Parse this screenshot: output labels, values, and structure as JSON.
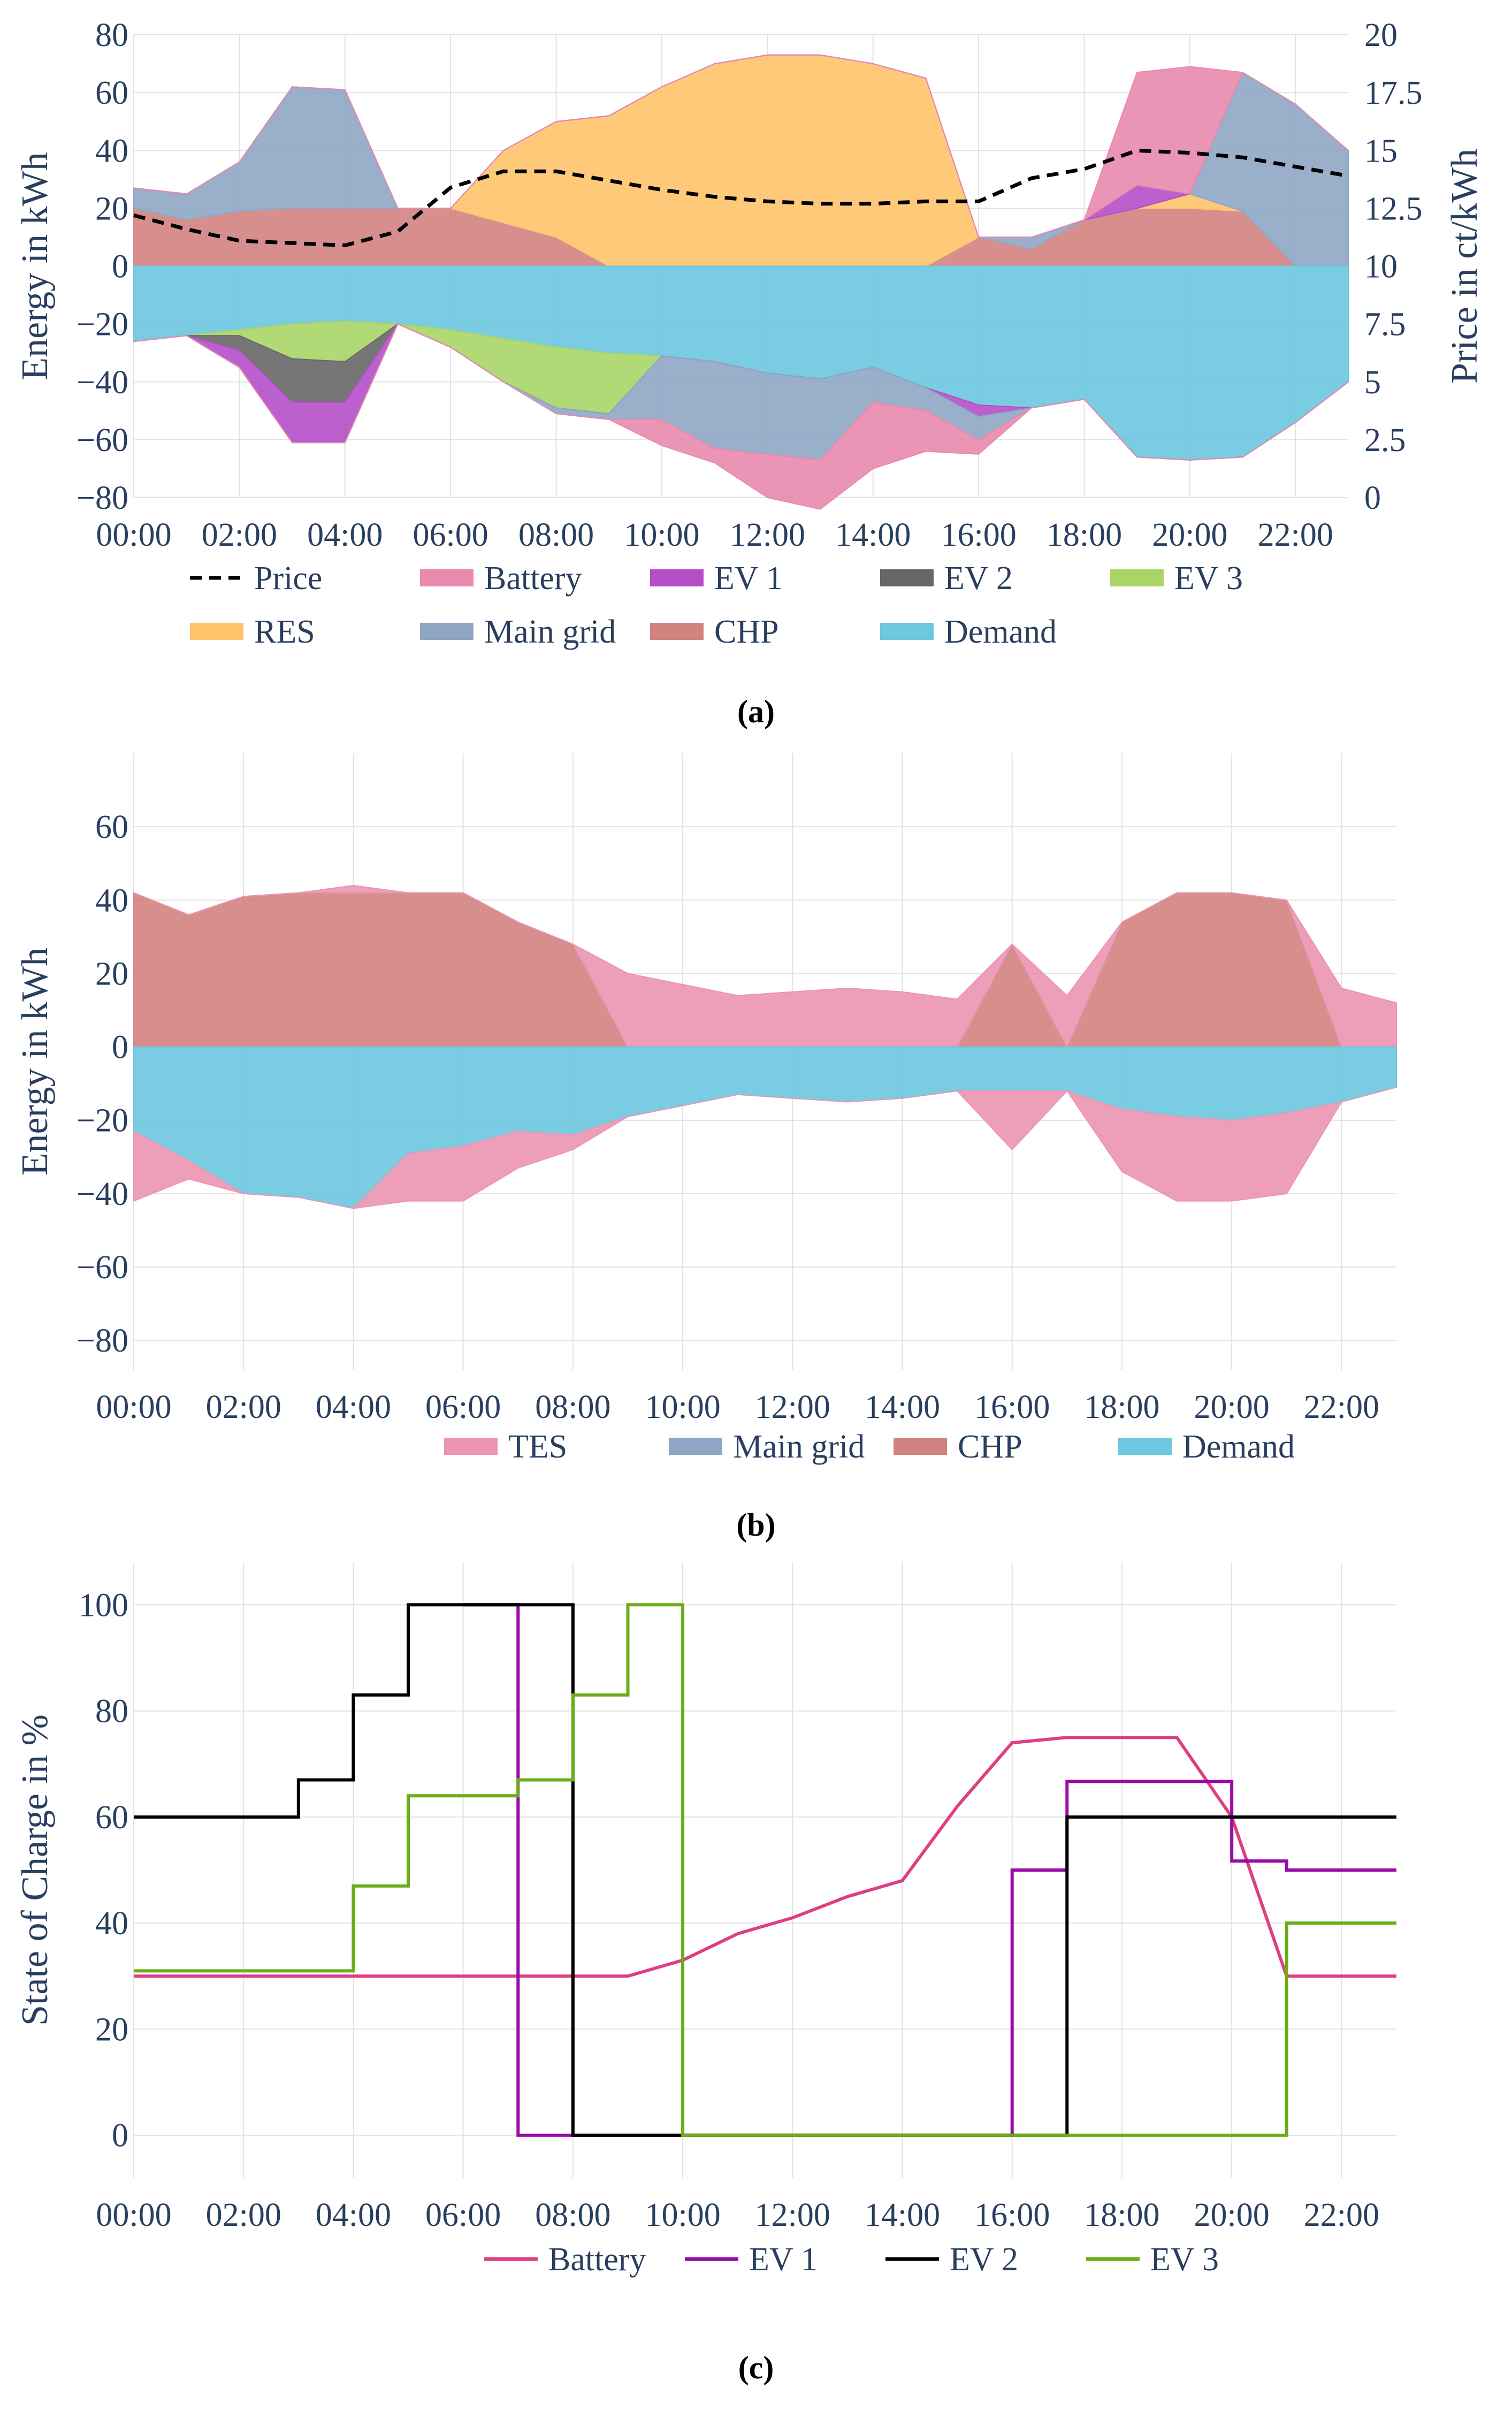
{
  "colors": {
    "price": "#000000",
    "battery": "#e889ad",
    "ev1": "#b54fc8",
    "ev2": "#676767",
    "ev3": "#a9d566",
    "res": "#ffc36b",
    "main_grid": "#8ea6c4",
    "chp": "#d2837f",
    "demand": "#6cc7df",
    "tes": "#eb95b3",
    "line_battery": "#de3f83",
    "line_ev1": "#9a0aa6",
    "line_ev2": "#000000",
    "line_ev3": "#6aad16",
    "grid": "#e2e2e2",
    "text": "#2a3f5f"
  },
  "chart_data": [
    {
      "type": "area",
      "caption": "(a)",
      "x": [
        "00:00",
        "01:00",
        "02:00",
        "03:00",
        "04:00",
        "05:00",
        "06:00",
        "07:00",
        "08:00",
        "09:00",
        "10:00",
        "11:00",
        "12:00",
        "13:00",
        "14:00",
        "15:00",
        "16:00",
        "17:00",
        "18:00",
        "19:00",
        "20:00",
        "21:00",
        "22:00",
        "23:00"
      ],
      "xticks": [
        "00:00",
        "02:00",
        "04:00",
        "06:00",
        "08:00",
        "10:00",
        "12:00",
        "14:00",
        "16:00",
        "18:00",
        "20:00",
        "22:00"
      ],
      "ylabel": "Energy in kWh",
      "ylim": [
        -80,
        80
      ],
      "yticks": [
        "−80",
        "−60",
        "−40",
        "−20",
        "0",
        "20",
        "40",
        "60",
        "80"
      ],
      "y2label": "Price in ct/kWh",
      "y2lim": [
        0,
        20
      ],
      "y2ticks": [
        "0",
        "2.5",
        "5",
        "7.5",
        "10",
        "12.5",
        "15",
        "17.5",
        "20"
      ],
      "legend": [
        "Price",
        "Battery",
        "EV 1",
        "EV 2",
        "EV 3",
        "RES",
        "Main grid",
        "CHP",
        "Demand"
      ],
      "positive_stack": [
        {
          "name": "CHP",
          "values": [
            20,
            16,
            19,
            20,
            20,
            20,
            20,
            15,
            10,
            0,
            0,
            0,
            0,
            0,
            0,
            0,
            10,
            6,
            16,
            20,
            20,
            19,
            0,
            0
          ]
        },
        {
          "name": "RES",
          "values": [
            0,
            0,
            0,
            0,
            0,
            0,
            0,
            25,
            40,
            52,
            62,
            70,
            73,
            73,
            70,
            65,
            0,
            0,
            0,
            0,
            5,
            0,
            0,
            0
          ]
        },
        {
          "name": "Main grid",
          "values": [
            7,
            9,
            17,
            42,
            41,
            0,
            0,
            0,
            0,
            0,
            0,
            0,
            0,
            0,
            0,
            0,
            0,
            4,
            0,
            0,
            0,
            48,
            56,
            40
          ]
        },
        {
          "name": "EV 1",
          "values": [
            0,
            0,
            0,
            0,
            0,
            0,
            0,
            0,
            0,
            0,
            0,
            0,
            0,
            0,
            0,
            0,
            0,
            0,
            0,
            8,
            0,
            0,
            0,
            0
          ]
        },
        {
          "name": "Battery",
          "values": [
            0,
            0,
            0,
            0,
            0,
            0,
            0,
            0,
            0,
            0,
            0,
            0,
            0,
            0,
            0,
            0,
            0,
            0,
            0,
            39,
            44,
            0,
            0,
            0
          ]
        }
      ],
      "negative_stack": [
        {
          "name": "Demand",
          "values": [
            -26,
            -24,
            -22,
            -20,
            -19,
            -20,
            -22,
            -25,
            -28,
            -30,
            -31,
            -33,
            -37,
            -39,
            -35,
            -42,
            -48,
            -49,
            -46,
            -66,
            -67,
            -66,
            -54,
            -40
          ]
        },
        {
          "name": "EV 3",
          "values": [
            0,
            0,
            -2,
            -12,
            -14,
            0,
            -6,
            -15,
            -21,
            -21,
            0,
            0,
            0,
            0,
            0,
            0,
            0,
            0,
            0,
            0,
            0,
            0,
            0,
            0
          ]
        },
        {
          "name": "EV 2",
          "values": [
            0,
            0,
            -5,
            -15,
            -14,
            0,
            0,
            0,
            0,
            0,
            0,
            0,
            0,
            0,
            0,
            0,
            0,
            0,
            0,
            0,
            0,
            0,
            0,
            0
          ]
        },
        {
          "name": "EV 1",
          "values": [
            0,
            0,
            -6,
            -14,
            -14,
            0,
            0,
            0,
            0,
            0,
            0,
            0,
            0,
            0,
            0,
            0,
            -4,
            0,
            0,
            0,
            0,
            0,
            0,
            0
          ]
        },
        {
          "name": "Main grid",
          "values": [
            0,
            0,
            0,
            0,
            0,
            0,
            0,
            0,
            -2,
            -2,
            -22,
            -30,
            -28,
            -28,
            -12,
            -8,
            -8,
            0,
            0,
            0,
            0,
            0,
            0,
            0
          ]
        },
        {
          "name": "Battery",
          "values": [
            0,
            0,
            0,
            0,
            0,
            0,
            0,
            0,
            0,
            0,
            -9,
            -5,
            -15,
            -17,
            -23,
            -14,
            -5,
            0,
            0,
            0,
            0,
            0,
            0,
            0
          ]
        }
      ],
      "price": [
        12.2,
        11.6,
        11.1,
        11.0,
        10.9,
        11.5,
        13.4,
        14.1,
        14.1,
        13.7,
        13.3,
        13.0,
        12.8,
        12.7,
        12.7,
        12.8,
        12.8,
        13.8,
        14.2,
        15.0,
        14.9,
        14.7,
        14.3,
        13.9
      ]
    },
    {
      "type": "area",
      "caption": "(b)",
      "x": [
        "00:00",
        "01:00",
        "02:00",
        "03:00",
        "04:00",
        "05:00",
        "06:00",
        "07:00",
        "08:00",
        "09:00",
        "10:00",
        "11:00",
        "12:00",
        "13:00",
        "14:00",
        "15:00",
        "16:00",
        "17:00",
        "18:00",
        "19:00",
        "20:00",
        "21:00",
        "22:00",
        "23:00"
      ],
      "xticks": [
        "00:00",
        "02:00",
        "04:00",
        "06:00",
        "08:00",
        "10:00",
        "12:00",
        "14:00",
        "16:00",
        "18:00",
        "20:00",
        "22:00"
      ],
      "ylabel": "Energy in kWh",
      "ylim": [
        -88,
        80
      ],
      "yticks": [
        "−80",
        "−60",
        "−40",
        "−20",
        "0",
        "20",
        "40",
        "60"
      ],
      "legend": [
        "TES",
        "Main grid",
        "CHP",
        "Demand"
      ],
      "positive_stack": [
        {
          "name": "CHP",
          "values": [
            42,
            36,
            41,
            42,
            42,
            42,
            42,
            34,
            28,
            0,
            0,
            0,
            0,
            0,
            0,
            0,
            28,
            0,
            34,
            42,
            42,
            40,
            0,
            0
          ]
        },
        {
          "name": "TES",
          "values": [
            0,
            0,
            0,
            0,
            2,
            0,
            0,
            0,
            0,
            20,
            17,
            14,
            15,
            16,
            15,
            13,
            0,
            14,
            0,
            0,
            0,
            0,
            16,
            12
          ]
        }
      ],
      "negative_stack": [
        {
          "name": "Demand",
          "values": [
            -23,
            -31,
            -40,
            -41,
            -44,
            -29,
            -27,
            -23,
            -24,
            -19,
            -16,
            -13,
            -14,
            -15,
            -14,
            -12,
            -12,
            -12,
            -17,
            -19,
            -20,
            -18,
            -15,
            -11
          ]
        },
        {
          "name": "TES",
          "values": [
            -19,
            -5,
            0,
            0,
            0,
            -13,
            -15,
            -10,
            -4,
            0,
            0,
            0,
            0,
            0,
            0,
            0,
            -16,
            0,
            -17,
            -23,
            -22,
            -22,
            0,
            0
          ]
        }
      ]
    },
    {
      "type": "line",
      "caption": "(c)",
      "x": [
        "00:00",
        "01:00",
        "02:00",
        "03:00",
        "04:00",
        "05:00",
        "06:00",
        "07:00",
        "08:00",
        "09:00",
        "10:00",
        "11:00",
        "12:00",
        "13:00",
        "14:00",
        "15:00",
        "16:00",
        "17:00",
        "18:00",
        "19:00",
        "20:00",
        "21:00",
        "22:00",
        "23:00"
      ],
      "xticks": [
        "00:00",
        "02:00",
        "04:00",
        "06:00",
        "08:00",
        "10:00",
        "12:00",
        "14:00",
        "16:00",
        "18:00",
        "20:00",
        "22:00"
      ],
      "ylabel": "State of Charge in %",
      "ylim": [
        -8,
        108
      ],
      "yticks": [
        "0",
        "20",
        "40",
        "60",
        "80",
        "100"
      ],
      "legend": [
        "Battery",
        "EV 1",
        "EV 2",
        "EV 3"
      ],
      "series": [
        {
          "name": "Battery",
          "shape": "linear",
          "values": [
            30,
            30,
            30,
            30,
            30,
            30,
            30,
            30,
            30,
            30,
            33,
            38,
            41,
            45,
            48,
            62,
            74,
            75,
            75,
            75,
            60,
            30,
            30,
            30
          ]
        },
        {
          "name": "EV 1",
          "shape": "step",
          "values": [
            null,
            null,
            null,
            null,
            null,
            null,
            100,
            0,
            0,
            0,
            0,
            0,
            0,
            0,
            0,
            0,
            50,
            66.7,
            66.7,
            66.7,
            51.7,
            50,
            50,
            50
          ]
        },
        {
          "name": "EV 2",
          "shape": "step",
          "values": [
            60,
            60,
            60,
            67,
            83,
            100,
            100,
            100,
            0,
            0,
            0,
            0,
            0,
            0,
            0,
            0,
            0,
            60,
            60,
            60,
            60,
            60,
            60,
            60
          ]
        },
        {
          "name": "EV 3",
          "shape": "step",
          "values": [
            31,
            31,
            31,
            31,
            47,
            64,
            64,
            67,
            83,
            100,
            0,
            0,
            0,
            0,
            0,
            0,
            0,
            0,
            0,
            0,
            0,
            40,
            40,
            40
          ]
        }
      ],
      "step_overrides": {
        "EV 1": [
          [
            6,
            100
          ],
          [
            6,
            0
          ]
        ],
        "EV 2": [
          [
            8,
            100
          ],
          [
            8,
            84
          ],
          [
            8,
            0
          ]
        ],
        "EV 3": [
          [
            8,
            84
          ]
        ]
      }
    }
  ]
}
